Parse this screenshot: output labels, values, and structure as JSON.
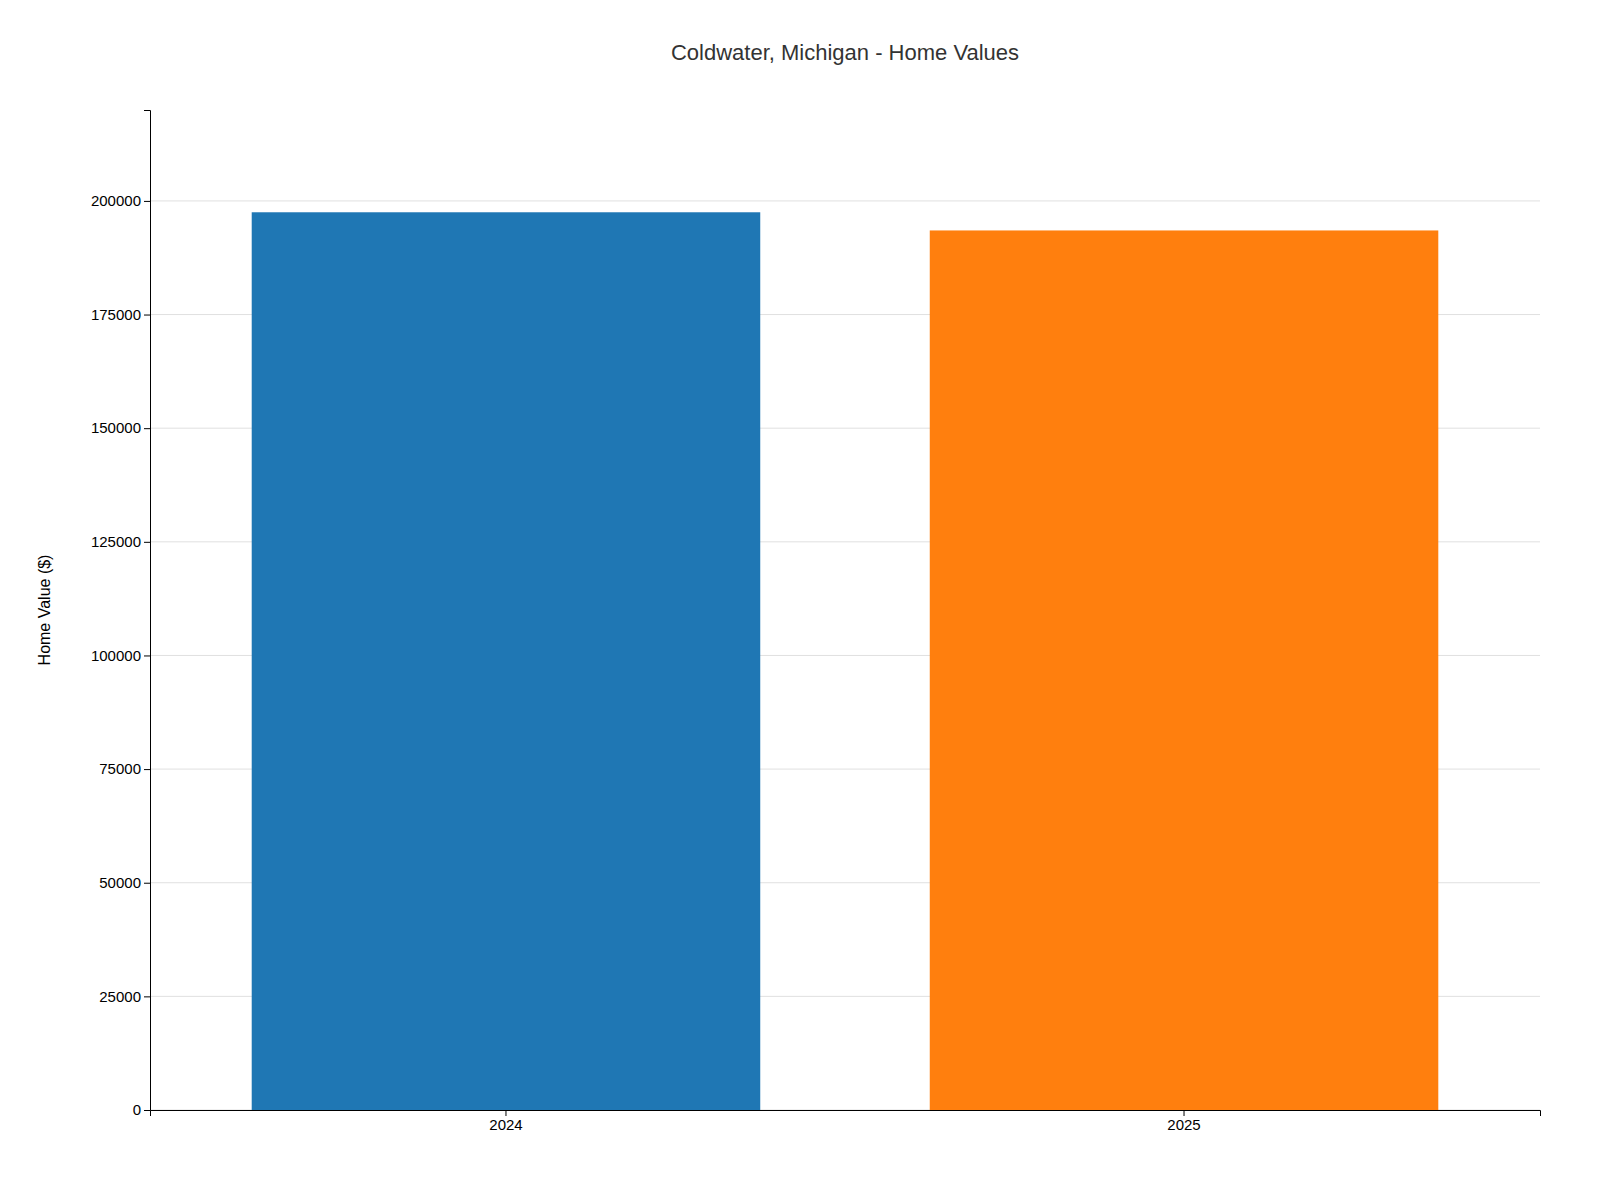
{
  "chart_data": {
    "type": "bar",
    "title": "Coldwater, Michigan - Home Values",
    "ylabel": "Home Value ($)",
    "categories": [
      "2024",
      "2025"
    ],
    "values": [
      197500,
      193500
    ],
    "ylim": [
      0,
      220000
    ],
    "yticks": [
      0,
      25000,
      50000,
      75000,
      100000,
      125000,
      150000,
      175000,
      200000
    ],
    "grid": true
  }
}
